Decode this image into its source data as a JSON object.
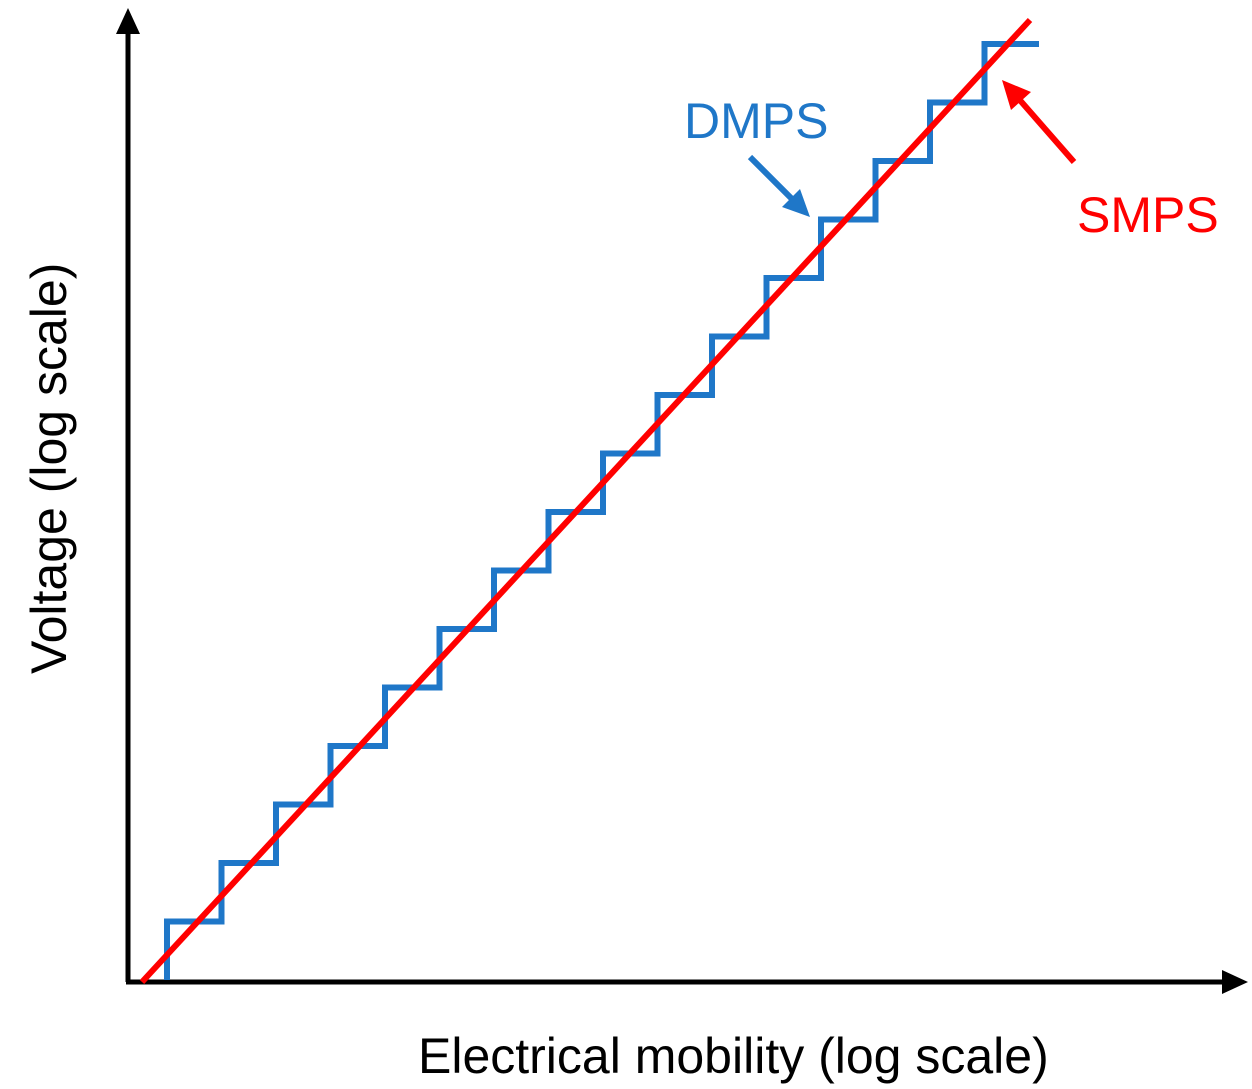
{
  "chart_data": {
    "type": "line",
    "title": "",
    "xlabel": "Electrical mobility (log scale)",
    "ylabel": "Voltage (log scale)",
    "x_scale": "log",
    "y_scale": "log",
    "grid": false,
    "series": [
      {
        "name": "DMPS",
        "style": "step",
        "color": "#1f77c8",
        "steps": 16
      },
      {
        "name": "SMPS",
        "style": "continuous",
        "color": "#ff0000"
      }
    ],
    "annotations": [
      {
        "text": "DMPS",
        "color": "#1f77c8",
        "points_to": "DMPS"
      },
      {
        "text": "SMPS",
        "color": "#ff0000",
        "points_to": "SMPS"
      }
    ]
  }
}
